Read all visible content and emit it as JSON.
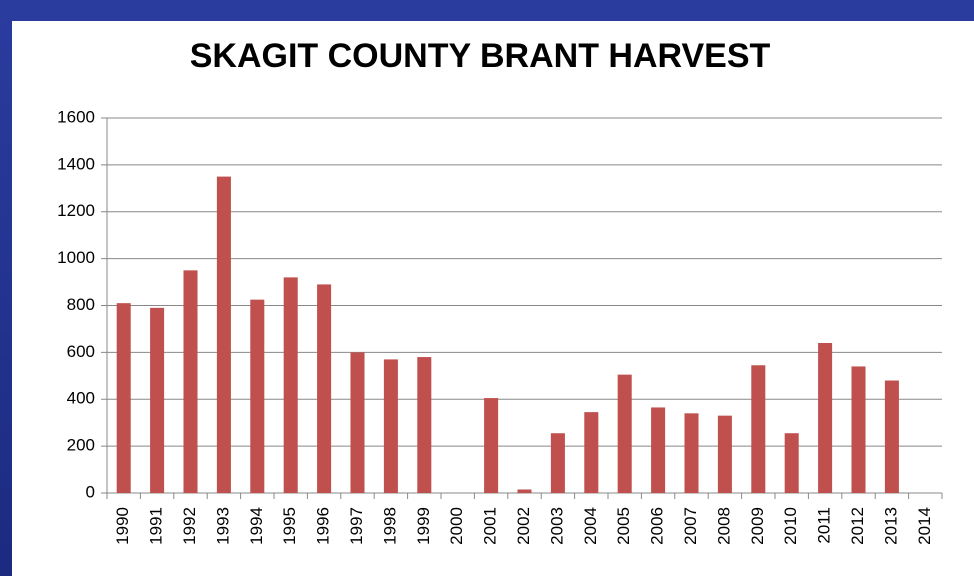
{
  "chart_data": {
    "type": "bar",
    "title": "SKAGIT COUNTY BRANT HARVEST",
    "categories": [
      "1990",
      "1991",
      "1992",
      "1993",
      "1994",
      "1995",
      "1996",
      "1997",
      "1998",
      "1999",
      "2000",
      "2001",
      "2002",
      "2003",
      "2004",
      "2005",
      "2006",
      "2007",
      "2008",
      "2009",
      "2010",
      "2011",
      "2012",
      "2013",
      "2014"
    ],
    "values": [
      810,
      790,
      950,
      1350,
      825,
      920,
      890,
      600,
      570,
      580,
      null,
      405,
      15,
      255,
      345,
      505,
      365,
      340,
      330,
      545,
      255,
      640,
      540,
      480,
      null
    ],
    "color": "#c0504d",
    "ylim": [
      0,
      1600
    ],
    "yticks": [
      0,
      200,
      400,
      600,
      800,
      1000,
      1200,
      1400,
      1600
    ],
    "grid": true
  }
}
